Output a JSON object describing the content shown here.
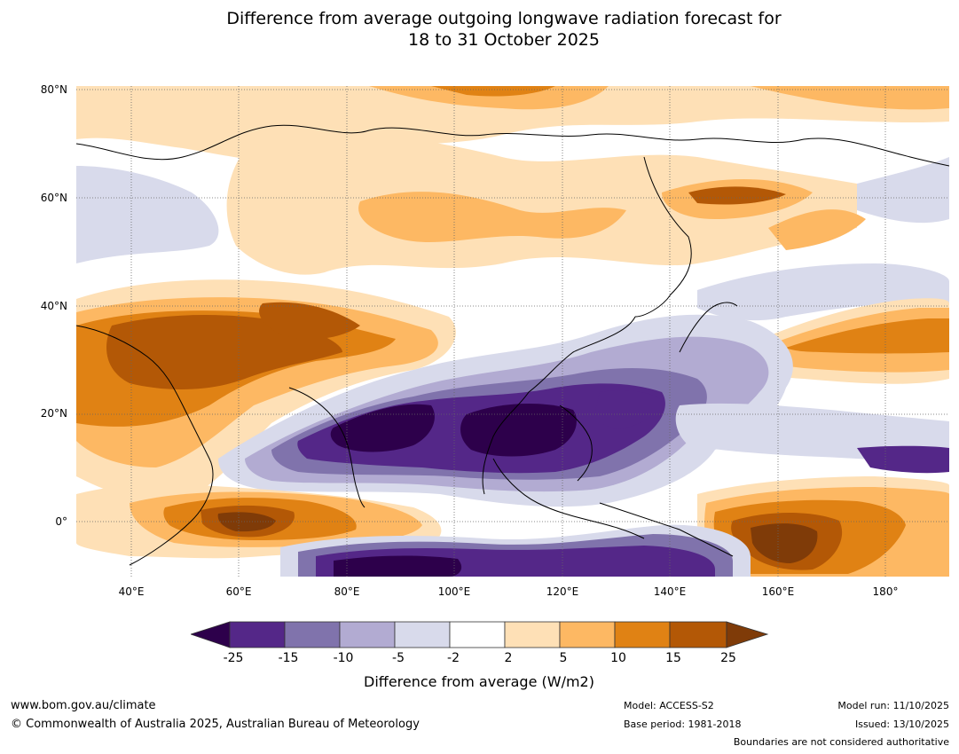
{
  "header": {
    "title_line1": "Difference from average outgoing longwave radiation forecast for",
    "title_line2": "18 to 31 October 2025"
  },
  "map": {
    "lat_labels": [
      "80°N",
      "60°N",
      "40°N",
      "20°N",
      "0°"
    ],
    "lon_labels": [
      "40°E",
      "60°E",
      "80°E",
      "100°E",
      "120°E",
      "140°E",
      "160°E",
      "180°"
    ]
  },
  "colorbar": {
    "ticks": [
      "-25",
      "-15",
      "-10",
      "-5",
      "-2",
      "2",
      "5",
      "10",
      "15",
      "25"
    ],
    "label": "Difference from average (W/m2)",
    "colors": {
      "below_-25": "#2d004b",
      "-25_to_-15": "#542788",
      "-15_to_-10": "#8073ac",
      "-10_to_-5": "#b2abd2",
      "-5_to_-2": "#d8daeb",
      "-2_to_2": "#ffffff",
      "2_to_5": "#fee0b6",
      "5_to_10": "#fdb863",
      "10_to_15": "#e08214",
      "15_to_25": "#b35806",
      "above_25": "#7f3b08"
    }
  },
  "footer": {
    "website": "www.bom.gov.au/climate",
    "copyright": "© Commonwealth of Australia 2025, Australian Bureau of Meteorology",
    "model": "Model: ACCESS-S2",
    "base_period": "Base period: 1981-2018",
    "model_run": "Model run: 11/10/2025",
    "issued": "Issued: 13/10/2025",
    "disclaimer": "Boundaries are not considered authoritative"
  }
}
